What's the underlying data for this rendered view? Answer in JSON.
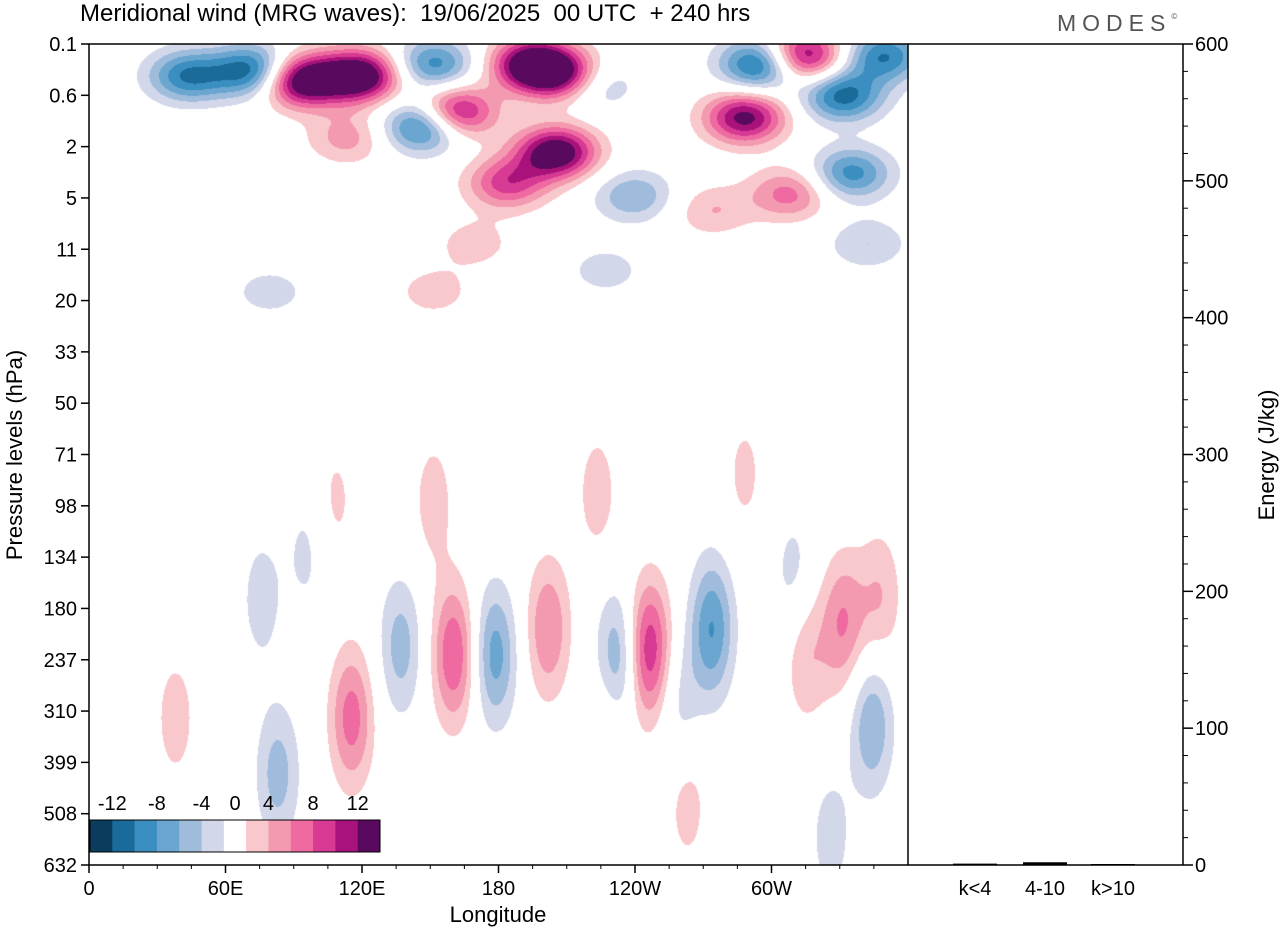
{
  "title": "Meridional wind (MRG waves):  19/06/2025  00 UTC  + 240 hrs",
  "logo": {
    "text": "MODES",
    "mark": "©"
  },
  "chart_data": [
    {
      "type": "heatmap",
      "title": "Meridional wind (MRG waves):  19/06/2025  00 UTC  + 240 hrs",
      "xlabel": "Longitude",
      "ylabel": "Pressure levels (hPa)",
      "x_ticks": [
        "0",
        "60E",
        "120E",
        "180",
        "120W",
        "60W"
      ],
      "y_ticks": [
        "0.1",
        "0.6",
        "2",
        "5",
        "11",
        "20",
        "33",
        "50",
        "71",
        "98",
        "134",
        "180",
        "237",
        "310",
        "399",
        "508",
        "632"
      ],
      "colorbar": {
        "labels": [
          "-12",
          "-8",
          "-4",
          "0",
          "4",
          "8",
          "12"
        ],
        "levels": [
          -14,
          -12,
          -10,
          -8,
          -6,
          -4,
          -2,
          2,
          4,
          6,
          8,
          10,
          12,
          14
        ],
        "colors": [
          "#0b3c5d",
          "#1a6a9a",
          "#3a8ec0",
          "#6aa6cf",
          "#9fbcdc",
          "#d3d7ea",
          "#ffffff",
          "#f9c8cc",
          "#f49ab0",
          "#ee6aa0",
          "#d63a92",
          "#a8127a",
          "#5a0a5e"
        ]
      },
      "blobs": [
        {
          "x": 258,
          "y": 0.35,
          "v": 16
        },
        {
          "x": 330,
          "y": 0.3,
          "v": 16
        },
        {
          "x": 445,
          "y": 0.9,
          "v": 14
        },
        {
          "x": 540,
          "y": 0.2,
          "v": 15
        },
        {
          "x": 580,
          "y": 0.3,
          "v": 12
        },
        {
          "x": 570,
          "y": 2.2,
          "v": 15
        },
        {
          "x": 510,
          "y": 3.8,
          "v": 9
        },
        {
          "x": 800,
          "y": 1.0,
          "v": 13
        },
        {
          "x": 870,
          "y": 0.15,
          "v": 14
        },
        {
          "x": 855,
          "y": 4.6,
          "v": 7
        },
        {
          "x": 315,
          "y": 1.6,
          "v": 5
        },
        {
          "x": 760,
          "y": 6,
          "v": 4
        },
        {
          "x": 200,
          "y": 0.25,
          "v": -12
        },
        {
          "x": 120,
          "y": 0.3,
          "v": -10
        },
        {
          "x": 410,
          "y": 1.2,
          "v": -13
        },
        {
          "x": 420,
          "y": 0.2,
          "v": -9
        },
        {
          "x": 615,
          "y": 0.4,
          "v": -6
        },
        {
          "x": 820,
          "y": 0.2,
          "v": -13
        },
        {
          "x": 920,
          "y": 0.6,
          "v": -11
        },
        {
          "x": 970,
          "y": 0.15,
          "v": -10
        },
        {
          "x": 930,
          "y": 3.2,
          "v": -9
        },
        {
          "x": 665,
          "y": 4.8,
          "v": -6
        },
        {
          "x": 630,
          "y": 14,
          "v": -3
        },
        {
          "x": 220,
          "y": 18,
          "v": -3
        },
        {
          "x": 950,
          "y": 10,
          "v": -4
        },
        {
          "x": 470,
          "y": 10,
          "v": 3
        },
        {
          "x": 420,
          "y": 18,
          "v": 3
        },
        {
          "x": 320,
          "y": 320,
          "v": 7
        },
        {
          "x": 445,
          "y": 230,
          "v": 8
        },
        {
          "x": 560,
          "y": 200,
          "v": 6
        },
        {
          "x": 683,
          "y": 225,
          "v": 10
        },
        {
          "x": 875,
          "y": 230,
          "v": 4
        },
        {
          "x": 920,
          "y": 195,
          "v": 6
        },
        {
          "x": 965,
          "y": 170,
          "v": 4
        },
        {
          "x": 105,
          "y": 320,
          "v": 3
        },
        {
          "x": 635,
          "y": 320,
          "v": 3
        },
        {
          "x": 730,
          "y": 480,
          "v": 3
        },
        {
          "x": 420,
          "y": 95,
          "v": 3
        },
        {
          "x": 620,
          "y": 90,
          "v": 3
        },
        {
          "x": 800,
          "y": 80,
          "v": 2.5
        },
        {
          "x": 300,
          "y": 95,
          "v": 2.5
        },
        {
          "x": 380,
          "y": 220,
          "v": -5
        },
        {
          "x": 495,
          "y": 230,
          "v": -7
        },
        {
          "x": 645,
          "y": 240,
          "v": -7
        },
        {
          "x": 760,
          "y": 200,
          "v": -8
        },
        {
          "x": 955,
          "y": 330,
          "v": -6
        },
        {
          "x": 230,
          "y": 420,
          "v": -5
        },
        {
          "x": 210,
          "y": 170,
          "v": -3
        },
        {
          "x": 720,
          "y": 300,
          "v": -3
        },
        {
          "x": 860,
          "y": 150,
          "v": -3
        },
        {
          "x": 905,
          "y": 560,
          "v": -3
        },
        {
          "x": 265,
          "y": 130,
          "v": -2.5
        }
      ]
    },
    {
      "type": "bar",
      "categories": [
        "k<4",
        "4-10",
        "k>10"
      ],
      "values": [
        1,
        2,
        0.5
      ],
      "ylabel": "Energy (J/kg)",
      "ylim": [
        0,
        600
      ],
      "y_ticks": [
        "0",
        "100",
        "200",
        "300",
        "400",
        "500",
        "600"
      ]
    }
  ]
}
